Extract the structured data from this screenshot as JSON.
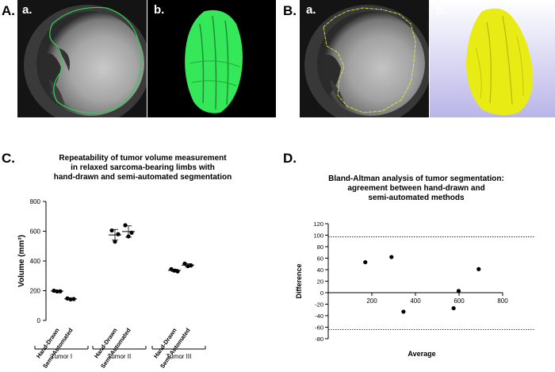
{
  "panels": {
    "A": {
      "letter": "A.",
      "sub_a": "a.",
      "sub_b": "b."
    },
    "B": {
      "letter": "B.",
      "sub_a": "a.",
      "sub_b": "b."
    },
    "C": {
      "letter": "C."
    },
    "D": {
      "letter": "D."
    }
  },
  "colors": {
    "contour_a": "#2fcf4f",
    "mesh_a": "#35e85a",
    "contour_b": "#e6f03a",
    "mesh_b": "#e8ec14",
    "lavender_bg": "#c9c6ec"
  },
  "chart_data": [
    {
      "type": "scatter",
      "title_lines": [
        "Repeatability of tumor volume measurement",
        "in relaxed sarcoma-bearing limbs with",
        "hand-drawn and semi-automated segmentation"
      ],
      "ylabel": "Volume (mm³)",
      "ylim": [
        0,
        800
      ],
      "yticks": [
        0,
        200,
        400,
        600,
        800
      ],
      "categories": [
        "Hand-Drawn",
        "Semi-Automated",
        "Hand-Drawn",
        "Semi-Automated",
        "Hand-Drawn",
        "Semi-Automated"
      ],
      "groups": [
        {
          "label": "Tumor I",
          "members": [
            0,
            1
          ]
        },
        {
          "label": "Tumor II",
          "members": [
            2,
            3
          ]
        },
        {
          "label": "Tumor III",
          "members": [
            4,
            5
          ]
        }
      ],
      "series": [
        {
          "category": 0,
          "values": [
            200,
            195,
            196
          ],
          "mean": 197,
          "sd_low": 192,
          "sd_high": 202
        },
        {
          "category": 1,
          "values": [
            148,
            142,
            144
          ],
          "mean": 145,
          "sd_low": 141,
          "sd_high": 149
        },
        {
          "category": 2,
          "values": [
            605,
            530,
            580
          ],
          "mean": 575,
          "sd_low": 540,
          "sd_high": 612
        },
        {
          "category": 3,
          "values": [
            640,
            565,
            590
          ],
          "mean": 598,
          "sd_low": 560,
          "sd_high": 636
        },
        {
          "category": 4,
          "values": [
            345,
            335,
            330
          ],
          "mean": 337,
          "sd_low": 329,
          "sd_high": 345
        },
        {
          "category": 5,
          "values": [
            382,
            365,
            370
          ],
          "mean": 372,
          "sd_low": 362,
          "sd_high": 382
        }
      ]
    },
    {
      "type": "scatter",
      "title_lines": [
        "Bland-Altman analysis of tumor segmentation:",
        "agreement between hand-drawn and",
        "semi-automated methods"
      ],
      "xlabel": "Average",
      "ylabel": "Difference",
      "xlim": [
        0,
        800
      ],
      "ylim": [
        -80,
        120
      ],
      "xticks": [
        200,
        400,
        600,
        800
      ],
      "yticks": [
        -80,
        -60,
        -40,
        -20,
        0,
        20,
        40,
        60,
        80,
        100,
        120
      ],
      "limits_of_agreement": [
        97,
        -64
      ],
      "points": [
        {
          "x": 170,
          "y": 53
        },
        {
          "x": 290,
          "y": 62
        },
        {
          "x": 345,
          "y": -33
        },
        {
          "x": 575,
          "y": -27
        },
        {
          "x": 598,
          "y": 3
        },
        {
          "x": 690,
          "y": 41
        }
      ]
    }
  ]
}
